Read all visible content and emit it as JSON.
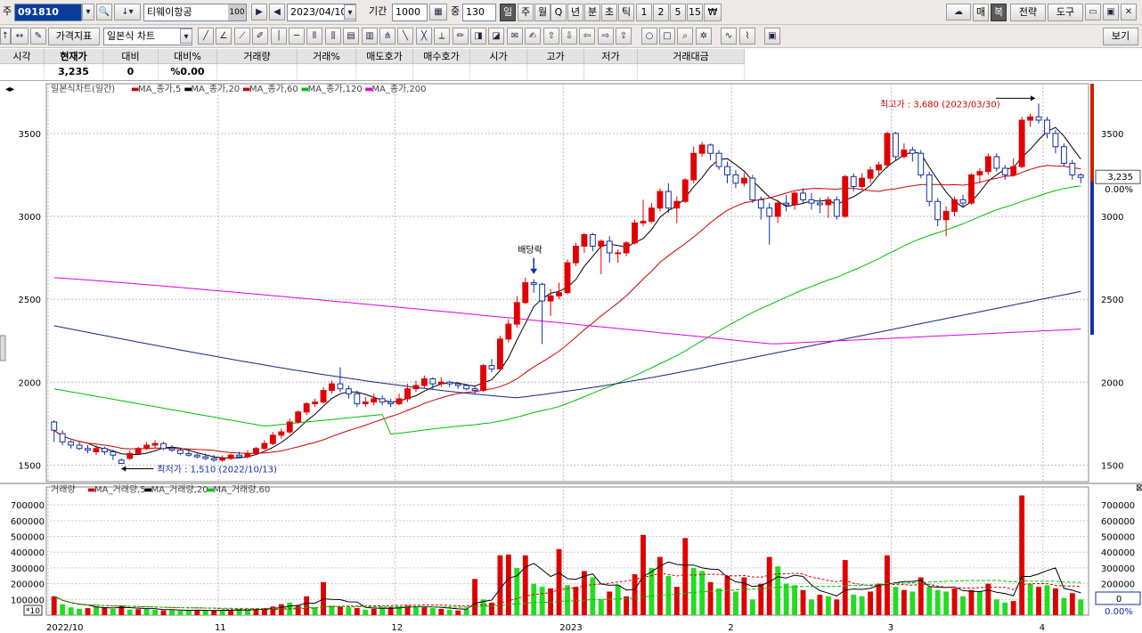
{
  "toolbar1": {
    "market_label": "주",
    "code": "091810",
    "stock_name": "티웨이항공",
    "stock_badge": "100",
    "date": "2023/04/10",
    "period_label": "기간",
    "period_value": "1000",
    "center_label": "중",
    "center_value": "130",
    "period_buttons": [
      "일",
      "주",
      "월",
      "Q",
      "년",
      "분",
      "초",
      "틱",
      "1",
      "2",
      "5",
      "15",
      "₩"
    ],
    "right_buttons": [
      "매",
      "복",
      "전략",
      "도구"
    ]
  },
  "toolbar2": {
    "price_index_label": "가격지표",
    "chart_type": "일본식 차트",
    "view_label": "보기"
  },
  "quote": {
    "headers": [
      "시각",
      "현재가",
      "대비",
      "대비%",
      "거래량",
      "거래%",
      "매도호가",
      "매수호가",
      "시가",
      "고가",
      "저가",
      "거래대금"
    ],
    "values": [
      "",
      "3,235",
      "0",
      "%0.00",
      "",
      "",
      "",
      "",
      "",
      "",
      "",
      ""
    ]
  },
  "price_panel": {
    "title": "일본식차트(일간)",
    "ma_legend": [
      {
        "name": "MA_종가,5",
        "color": "#d00000"
      },
      {
        "name": "MA_종가,20",
        "color": "#000000"
      },
      {
        "name": "MA_종가,60",
        "color": "#d00000"
      },
      {
        "name": "MA_종가,120",
        "color": "#00c000"
      },
      {
        "name": "MA_종가,200",
        "color": "#e000e0"
      }
    ],
    "high_annotation": "최고가 : 3,680 (2023/03/30)",
    "low_annotation": "최저가 : 1,510 (2022/10/13)",
    "dividend_annotation": "배당락",
    "current_price": "3,235",
    "current_pct": "0.00%",
    "y_ticks": [
      "3500",
      "3000",
      "2500",
      "2000",
      "1500"
    ]
  },
  "volume_panel": {
    "title": "거래량",
    "ma_legend": [
      {
        "name": "MA_거래량,5",
        "color": "#d00000"
      },
      {
        "name": "MA_거래량,20",
        "color": "#000000"
      },
      {
        "name": "MA_거래량,60",
        "color": "#00c000"
      }
    ],
    "y_ticks": [
      "700000",
      "600000",
      "500000",
      "400000",
      "300000",
      "200000",
      "100000"
    ],
    "scale_badge": "*10",
    "right_value": "0",
    "right_pct": "0.00%"
  },
  "x_labels": [
    "2022/10",
    "11",
    "12",
    "2023",
    "2",
    "3",
    "4"
  ],
  "colors": {
    "up": "#e00000",
    "down": "#1030a0",
    "vol_up": "#e00000",
    "vol_down": "#22dd22",
    "ma5": "#d00000",
    "ma20": "#000000",
    "ma60": "#d00000",
    "ma120": "#00c000",
    "ma200": "#e000e0",
    "long": "#1a237e"
  },
  "chart_data": {
    "type": "candlestick",
    "y_range": [
      1400,
      3800
    ],
    "volume_range": [
      0,
      780000
    ],
    "candles": [
      [
        1760,
        1710,
        1770,
        1640
      ],
      [
        1690,
        1640,
        1710,
        1620
      ],
      [
        1640,
        1620,
        1650,
        1600
      ],
      [
        1620,
        1600,
        1640,
        1590
      ],
      [
        1600,
        1590,
        1620,
        1570
      ],
      [
        1580,
        1600,
        1620,
        1560
      ],
      [
        1600,
        1580,
        1610,
        1560
      ],
      [
        1580,
        1560,
        1590,
        1530
      ],
      [
        1530,
        1510,
        1540,
        1510
      ],
      [
        1540,
        1570,
        1590,
        1530
      ],
      [
        1570,
        1600,
        1610,
        1560
      ],
      [
        1600,
        1620,
        1640,
        1590
      ],
      [
        1620,
        1630,
        1650,
        1600
      ],
      [
        1630,
        1600,
        1640,
        1590
      ],
      [
        1600,
        1590,
        1620,
        1580
      ],
      [
        1590,
        1570,
        1600,
        1560
      ],
      [
        1570,
        1560,
        1590,
        1550
      ],
      [
        1560,
        1550,
        1570,
        1540
      ],
      [
        1550,
        1540,
        1570,
        1530
      ],
      [
        1540,
        1530,
        1560,
        1520
      ],
      [
        1530,
        1540,
        1560,
        1520
      ],
      [
        1540,
        1560,
        1570,
        1530
      ],
      [
        1560,
        1550,
        1580,
        1540
      ],
      [
        1550,
        1570,
        1590,
        1540
      ],
      [
        1570,
        1600,
        1610,
        1560
      ],
      [
        1600,
        1630,
        1650,
        1590
      ],
      [
        1630,
        1680,
        1700,
        1620
      ],
      [
        1680,
        1700,
        1720,
        1660
      ],
      [
        1700,
        1760,
        1780,
        1690
      ],
      [
        1760,
        1820,
        1830,
        1750
      ],
      [
        1820,
        1870,
        1880,
        1800
      ],
      [
        1870,
        1880,
        1900,
        1850
      ],
      [
        1880,
        1950,
        1970,
        1870
      ],
      [
        1950,
        1990,
        2010,
        1930
      ],
      [
        1990,
        1960,
        2090,
        1940
      ],
      [
        1960,
        1930,
        1980,
        1900
      ],
      [
        1930,
        1870,
        1950,
        1850
      ],
      [
        1870,
        1880,
        1910,
        1850
      ],
      [
        1880,
        1900,
        1930,
        1860
      ],
      [
        1900,
        1880,
        1920,
        1860
      ],
      [
        1880,
        1870,
        1900,
        1850
      ],
      [
        1870,
        1900,
        1930,
        1860
      ],
      [
        1900,
        1960,
        1990,
        1880
      ],
      [
        1960,
        1980,
        2010,
        1940
      ],
      [
        1980,
        2020,
        2040,
        1960
      ],
      [
        2020,
        1990,
        2030,
        1960
      ],
      [
        1990,
        2000,
        2030,
        1970
      ],
      [
        2000,
        1990,
        2010,
        1970
      ],
      [
        1990,
        1980,
        2000,
        1960
      ],
      [
        1980,
        1960,
        1990,
        1950
      ],
      [
        1960,
        1950,
        1980,
        1930
      ],
      [
        1950,
        2100,
        2110,
        1940
      ],
      [
        2100,
        2080,
        2140,
        2060
      ],
      [
        2080,
        2260,
        2280,
        2070
      ],
      [
        2260,
        2350,
        2380,
        2240
      ],
      [
        2350,
        2480,
        2520,
        2330
      ],
      [
        2480,
        2600,
        2630,
        2470
      ],
      [
        2600,
        2590,
        2620,
        2540
      ],
      [
        2590,
        2490,
        2600,
        2230
      ],
      [
        2490,
        2520,
        2560,
        2400
      ],
      [
        2520,
        2540,
        2600,
        2500
      ],
      [
        2540,
        2720,
        2740,
        2530
      ],
      [
        2720,
        2820,
        2840,
        2700
      ],
      [
        2820,
        2890,
        2900,
        2780
      ],
      [
        2890,
        2820,
        2900,
        2790
      ],
      [
        2820,
        2850,
        2860,
        2650
      ],
      [
        2850,
        2780,
        2880,
        2720
      ],
      [
        2780,
        2780,
        2800,
        2720
      ],
      [
        2780,
        2840,
        2850,
        2760
      ],
      [
        2840,
        2960,
        2980,
        2830
      ],
      [
        2960,
        2970,
        3100,
        2940
      ],
      [
        2970,
        3050,
        3080,
        2960
      ],
      [
        3050,
        3150,
        3170,
        3030
      ],
      [
        3150,
        3050,
        3200,
        3020
      ],
      [
        3050,
        3090,
        3120,
        2960
      ],
      [
        3090,
        3220,
        3230,
        3080
      ],
      [
        3220,
        3380,
        3420,
        3200
      ],
      [
        3380,
        3430,
        3450,
        3360
      ],
      [
        3430,
        3380,
        3440,
        3340
      ],
      [
        3380,
        3300,
        3400,
        3280
      ],
      [
        3300,
        3250,
        3330,
        3200
      ],
      [
        3250,
        3200,
        3280,
        3170
      ],
      [
        3200,
        3230,
        3260,
        3180
      ],
      [
        3230,
        3100,
        3250,
        3080
      ],
      [
        3100,
        3050,
        3120,
        2980
      ],
      [
        3050,
        3000,
        3080,
        2830
      ],
      [
        3000,
        3080,
        3100,
        2960
      ],
      [
        3080,
        3070,
        3130,
        3030
      ],
      [
        3070,
        3140,
        3150,
        3040
      ],
      [
        3140,
        3100,
        3170,
        3080
      ],
      [
        3100,
        3080,
        3140,
        3040
      ],
      [
        3080,
        3070,
        3110,
        3020
      ],
      [
        3070,
        3100,
        3120,
        2990
      ],
      [
        3100,
        3000,
        3120,
        2980
      ],
      [
        3000,
        3240,
        3250,
        2990
      ],
      [
        3240,
        3180,
        3260,
        3150
      ],
      [
        3180,
        3230,
        3260,
        3160
      ],
      [
        3230,
        3280,
        3300,
        3200
      ],
      [
        3280,
        3310,
        3330,
        3250
      ],
      [
        3310,
        3500,
        3510,
        3290
      ],
      [
        3500,
        3360,
        3510,
        3340
      ],
      [
        3360,
        3400,
        3440,
        3350
      ],
      [
        3400,
        3380,
        3420,
        3330
      ],
      [
        3380,
        3250,
        3400,
        3230
      ],
      [
        3250,
        3090,
        3270,
        3060
      ],
      [
        3090,
        2980,
        3110,
        2940
      ],
      [
        2980,
        3030,
        3060,
        2880
      ],
      [
        3030,
        3100,
        3120,
        3000
      ],
      [
        3100,
        3080,
        3130,
        3050
      ],
      [
        3080,
        3250,
        3260,
        3070
      ],
      [
        3250,
        3270,
        3290,
        3200
      ],
      [
        3270,
        3360,
        3380,
        3250
      ],
      [
        3360,
        3290,
        3380,
        3270
      ],
      [
        3290,
        3250,
        3310,
        3220
      ],
      [
        3250,
        3300,
        3350,
        3240
      ],
      [
        3300,
        3580,
        3600,
        3290
      ],
      [
        3580,
        3600,
        3620,
        3540
      ],
      [
        3600,
        3580,
        3680,
        3560
      ],
      [
        3580,
        3500,
        3600,
        3470
      ],
      [
        3500,
        3420,
        3520,
        3380
      ],
      [
        3420,
        3320,
        3440,
        3300
      ],
      [
        3320,
        3250,
        3340,
        3220
      ],
      [
        3250,
        3235,
        3260,
        3200
      ]
    ],
    "volumes": [
      [
        120000,
        1
      ],
      [
        70000,
        0
      ],
      [
        50000,
        0
      ],
      [
        40000,
        0
      ],
      [
        45000,
        1
      ],
      [
        55000,
        0
      ],
      [
        50000,
        1
      ],
      [
        40000,
        0
      ],
      [
        60000,
        1
      ],
      [
        35000,
        0
      ],
      [
        38000,
        1
      ],
      [
        40000,
        0
      ],
      [
        35000,
        0
      ],
      [
        30000,
        1
      ],
      [
        32000,
        0
      ],
      [
        28000,
        0
      ],
      [
        30000,
        0
      ],
      [
        35000,
        1
      ],
      [
        30000,
        0
      ],
      [
        28000,
        1
      ],
      [
        32000,
        0
      ],
      [
        30000,
        1
      ],
      [
        40000,
        0
      ],
      [
        35000,
        0
      ],
      [
        38000,
        1
      ],
      [
        45000,
        1
      ],
      [
        55000,
        1
      ],
      [
        70000,
        1
      ],
      [
        80000,
        0
      ],
      [
        60000,
        1
      ],
      [
        120000,
        1
      ],
      [
        50000,
        0
      ],
      [
        210000,
        1
      ],
      [
        60000,
        0
      ],
      [
        55000,
        1
      ],
      [
        50000,
        0
      ],
      [
        45000,
        1
      ],
      [
        35000,
        0
      ],
      [
        40000,
        1
      ],
      [
        50000,
        0
      ],
      [
        50000,
        1
      ],
      [
        55000,
        0
      ],
      [
        60000,
        1
      ],
      [
        55000,
        0
      ],
      [
        50000,
        1
      ],
      [
        45000,
        0
      ],
      [
        40000,
        1
      ],
      [
        35000,
        0
      ],
      [
        30000,
        1
      ],
      [
        40000,
        0
      ],
      [
        230000,
        1
      ],
      [
        100000,
        0
      ],
      [
        80000,
        1
      ],
      [
        380000,
        1
      ],
      [
        385000,
        1
      ],
      [
        300000,
        0
      ],
      [
        380000,
        1
      ],
      [
        200000,
        0
      ],
      [
        180000,
        0
      ],
      [
        170000,
        1
      ],
      [
        420000,
        1
      ],
      [
        190000,
        0
      ],
      [
        180000,
        1
      ],
      [
        280000,
        1
      ],
      [
        240000,
        0
      ],
      [
        100000,
        0
      ],
      [
        150000,
        1
      ],
      [
        190000,
        0
      ],
      [
        120000,
        1
      ],
      [
        260000,
        1
      ],
      [
        510000,
        1
      ],
      [
        300000,
        0
      ],
      [
        370000,
        1
      ],
      [
        250000,
        0
      ],
      [
        180000,
        1
      ],
      [
        490000,
        1
      ],
      [
        300000,
        0
      ],
      [
        280000,
        0
      ],
      [
        210000,
        1
      ],
      [
        170000,
        0
      ],
      [
        250000,
        1
      ],
      [
        150000,
        0
      ],
      [
        240000,
        1
      ],
      [
        100000,
        0
      ],
      [
        200000,
        1
      ],
      [
        370000,
        1
      ],
      [
        310000,
        0
      ],
      [
        200000,
        0
      ],
      [
        190000,
        0
      ],
      [
        160000,
        1
      ],
      [
        100000,
        0
      ],
      [
        130000,
        1
      ],
      [
        120000,
        0
      ],
      [
        100000,
        1
      ],
      [
        350000,
        1
      ],
      [
        130000,
        0
      ],
      [
        120000,
        0
      ],
      [
        150000,
        1
      ],
      [
        200000,
        1
      ],
      [
        380000,
        1
      ],
      [
        180000,
        0
      ],
      [
        160000,
        1
      ],
      [
        150000,
        0
      ],
      [
        240000,
        1
      ],
      [
        180000,
        0
      ],
      [
        160000,
        0
      ],
      [
        150000,
        0
      ],
      [
        170000,
        1
      ],
      [
        120000,
        0
      ],
      [
        160000,
        1
      ],
      [
        150000,
        0
      ],
      [
        200000,
        1
      ],
      [
        100000,
        0
      ],
      [
        80000,
        0
      ],
      [
        90000,
        1
      ],
      [
        760000,
        1
      ],
      [
        200000,
        0
      ],
      [
        180000,
        1
      ],
      [
        190000,
        0
      ],
      [
        170000,
        1
      ],
      [
        110000,
        0
      ],
      [
        140000,
        1
      ],
      [
        100000,
        0
      ]
    ]
  }
}
